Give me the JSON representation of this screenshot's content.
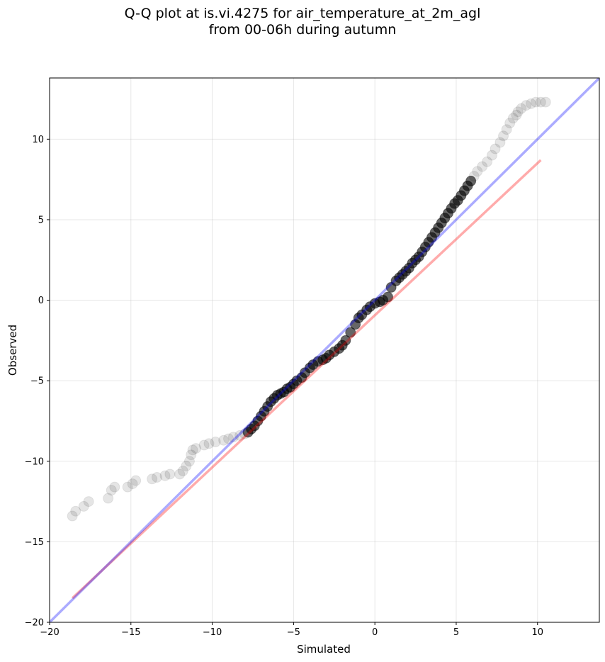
{
  "chart_data": {
    "type": "scatter",
    "title": "Q-Q plot at is.vi.4275 for air_temperature_at_2m_agl",
    "subtitle": "from 00-06h during autumn",
    "xlabel": "Simulated",
    "ylabel": "Observed",
    "xlim": [
      -20,
      13.8
    ],
    "ylim": [
      -20,
      13.8
    ],
    "xticks": [
      "−20",
      "−15",
      "−10",
      "−5",
      "0",
      "5",
      "10"
    ],
    "yticks": [
      "−20",
      "−15",
      "−10",
      "−5",
      "0",
      "5",
      "10"
    ],
    "grid": true,
    "colors": {
      "points": "#000000",
      "identity_line": "#0000ff",
      "fit_line": "#ff0000"
    },
    "identity_line": {
      "x": [
        -20,
        13.8
      ],
      "y": [
        -20,
        13.8
      ]
    },
    "fit_line": {
      "x": [
        -18.6,
        10.2
      ],
      "y": [
        -18.5,
        8.7
      ]
    },
    "points": {
      "x": [
        -18.6,
        -18.4,
        -17.9,
        -17.6,
        -16.4,
        -16.2,
        -16.0,
        -15.2,
        -14.9,
        -14.7,
        -13.7,
        -13.4,
        -12.9,
        -12.6,
        -12.0,
        -11.8,
        -11.6,
        -11.4,
        -11.3,
        -11.2,
        -11.0,
        -10.5,
        -10.2,
        -9.8,
        -9.3,
        -9.0,
        -8.7,
        -8.3,
        -8.0,
        -7.8,
        -7.6,
        -7.4,
        -7.2,
        -7.0,
        -6.8,
        -6.6,
        -6.4,
        -6.2,
        -6.0,
        -5.8,
        -5.6,
        -5.4,
        -5.2,
        -5.0,
        -4.8,
        -4.5,
        -4.3,
        -4.0,
        -3.8,
        -3.5,
        -3.2,
        -3.0,
        -2.8,
        -2.5,
        -2.2,
        -2.0,
        -1.8,
        -1.5,
        -1.2,
        -1.0,
        -0.8,
        -0.5,
        -0.3,
        0.0,
        0.3,
        0.5,
        0.8,
        1.0,
        1.3,
        1.5,
        1.7,
        1.9,
        2.1,
        2.3,
        2.5,
        2.7,
        2.9,
        3.1,
        3.3,
        3.5,
        3.7,
        3.9,
        4.1,
        4.3,
        4.5,
        4.7,
        4.9,
        5.1,
        5.3,
        5.5,
        5.7,
        5.9,
        6.1,
        6.3,
        6.6,
        6.9,
        7.2,
        7.4,
        7.7,
        7.9,
        8.1,
        8.3,
        8.5,
        8.7,
        8.8,
        9.0,
        9.3,
        9.6,
        9.9,
        10.2,
        10.5
      ],
      "y": [
        -13.4,
        -13.1,
        -12.8,
        -12.5,
        -12.3,
        -11.8,
        -11.6,
        -11.6,
        -11.4,
        -11.2,
        -11.1,
        -11.0,
        -10.9,
        -10.8,
        -10.8,
        -10.6,
        -10.3,
        -10.0,
        -9.6,
        -9.3,
        -9.2,
        -9.0,
        -8.9,
        -8.8,
        -8.7,
        -8.6,
        -8.5,
        -8.4,
        -8.3,
        -8.2,
        -8.0,
        -7.8,
        -7.5,
        -7.2,
        -6.9,
        -6.6,
        -6.3,
        -6.1,
        -5.9,
        -5.8,
        -5.7,
        -5.5,
        -5.4,
        -5.2,
        -5.0,
        -4.8,
        -4.5,
        -4.2,
        -4.0,
        -3.8,
        -3.7,
        -3.6,
        -3.4,
        -3.2,
        -3.0,
        -2.8,
        -2.5,
        -2.0,
        -1.5,
        -1.1,
        -0.9,
        -0.6,
        -0.4,
        -0.2,
        -0.1,
        0.0,
        0.2,
        0.8,
        1.2,
        1.4,
        1.6,
        1.8,
        2.0,
        2.3,
        2.5,
        2.7,
        3.0,
        3.3,
        3.6,
        3.9,
        4.2,
        4.5,
        4.8,
        5.1,
        5.4,
        5.7,
        6.0,
        6.2,
        6.5,
        6.8,
        7.1,
        7.4,
        7.7,
        8.0,
        8.3,
        8.6,
        9.0,
        9.4,
        9.8,
        10.2,
        10.6,
        11.0,
        11.3,
        11.5,
        11.7,
        11.9,
        12.1,
        12.2,
        12.3,
        12.3,
        12.3
      ]
    }
  }
}
